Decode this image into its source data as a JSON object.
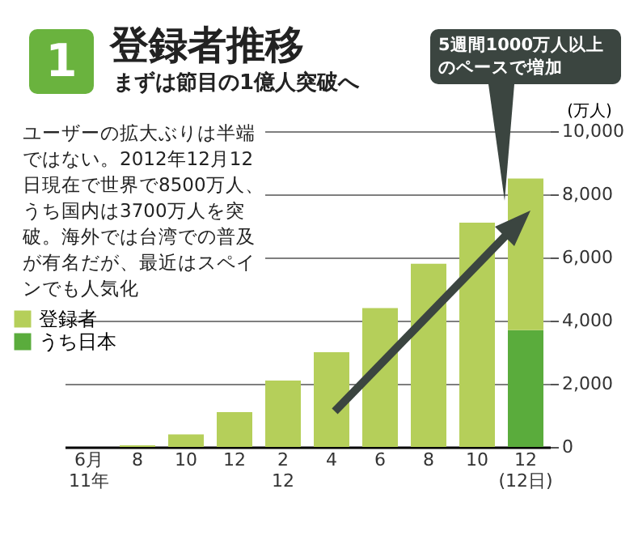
{
  "chart_data": {
    "type": "bar",
    "title": "登録者推移",
    "subtitle": "まずは節目の1億人突破へ",
    "ylabel": "(万人)",
    "annotations": [
      "1",
      "ユーザーの拡大ぶりは半端ではない。2012年12月12日現在で世界で8500万人、うち国内は3700万人を突破。海外では台湾での普及が有名だが、最近はスペインでも人気化",
      "5週間1000万人以上のペースで増加"
    ],
    "categories": [
      "6月\n11年",
      "8",
      "10",
      "12",
      "2\n12",
      "4",
      "6",
      "8",
      "10",
      "12\n(12日)"
    ],
    "stacked": true,
    "series": [
      {
        "name": "うち日本",
        "color": "#5aac3c",
        "values": [
          null,
          null,
          null,
          null,
          null,
          null,
          null,
          null,
          null,
          3700
        ]
      },
      {
        "name": "登録者",
        "color": "#b5cf5a",
        "values": [
          0,
          50,
          400,
          1100,
          2100,
          3000,
          4400,
          5800,
          7100,
          4800
        ]
      }
    ],
    "ylim": [
      0,
      10000
    ],
    "yticks": [
      0,
      {
        "value": 2000,
        "label": "2,000"
      },
      {
        "value": 4000,
        "label": "4,000"
      },
      {
        "value": 6000,
        "label": "6,000"
      },
      {
        "value": 8000,
        "label": "8,000"
      },
      {
        "value": 10000,
        "label": "10,000"
      }
    ],
    "grid": "y",
    "legend": "left"
  }
}
